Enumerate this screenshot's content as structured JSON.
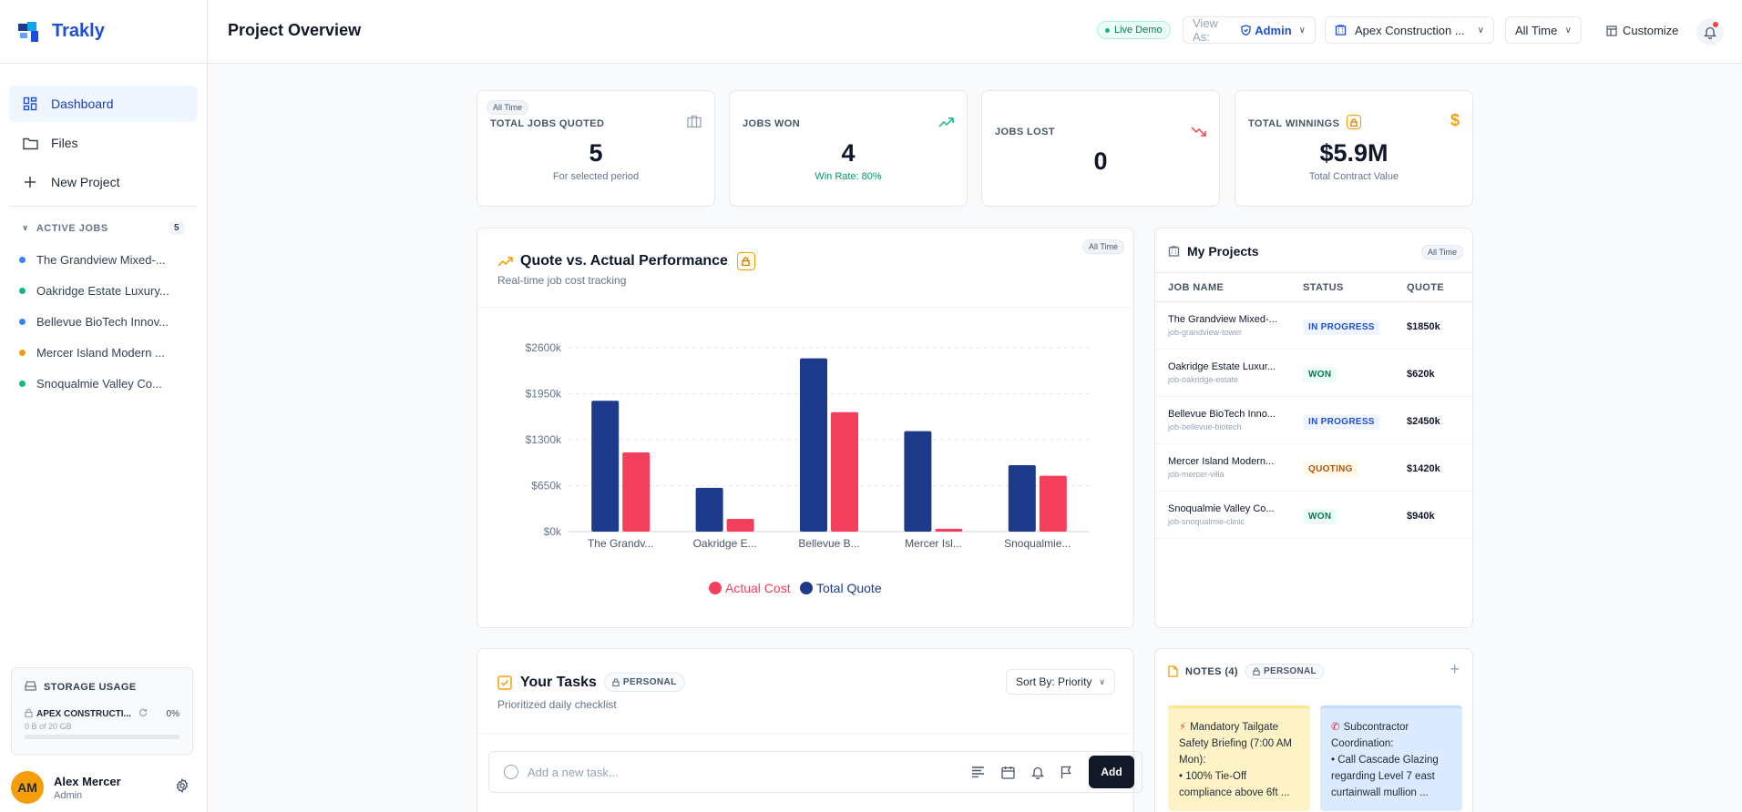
{
  "brand": {
    "name": "Trakly"
  },
  "sidebar": {
    "nav": [
      {
        "label": "Dashboard",
        "icon": "dashboard-icon"
      },
      {
        "label": "Files",
        "icon": "folder-icon"
      },
      {
        "label": "New Project",
        "icon": "plus-icon"
      }
    ],
    "jobs_header": "ACTIVE JOBS",
    "jobs_count": "5",
    "jobs": [
      {
        "label": "The Grandview Mixed-...",
        "color": "#3b82f6"
      },
      {
        "label": "Oakridge Estate Luxury...",
        "color": "#10b981"
      },
      {
        "label": "Bellevue BioTech Innov...",
        "color": "#3b82f6"
      },
      {
        "label": "Mercer Island Modern ...",
        "color": "#f59e0b"
      },
      {
        "label": "Snoqualmie Valley Co...",
        "color": "#10b981"
      }
    ],
    "storage": {
      "title": "STORAGE USAGE",
      "org": "APEX CONSTRUCTI...",
      "percent": "0%",
      "used": "0 B of 20 GB"
    },
    "user": {
      "initials": "AM",
      "name": "Alex Mercer",
      "role": "Admin"
    }
  },
  "header": {
    "title": "Project Overview",
    "live_badge": "Live Demo",
    "view_as_label": "View As:",
    "view_as_value": "Admin",
    "company": "Apex Construction ...",
    "period": "All Time",
    "customize": "Customize"
  },
  "kpis": [
    {
      "label": "TOTAL JOBS QUOTED",
      "value": "5",
      "sub": "For selected period",
      "tag": "All Time"
    },
    {
      "label": "JOBS WON",
      "value": "4",
      "sub": "Win Rate: 80%"
    },
    {
      "label": "JOBS LOST",
      "value": "0"
    },
    {
      "label": "TOTAL WINNINGS",
      "value": "$5.9M",
      "sub": "Total Contract Value"
    }
  ],
  "performance": {
    "title": "Quote vs. Actual Performance",
    "subtitle": "Real-time job cost tracking",
    "tag": "All Time"
  },
  "chart_data": {
    "type": "bar",
    "categories": [
      "The Grandv...",
      "Oakridge E...",
      "Bellevue B...",
      "Mercer Isl...",
      "Snoqualmie..."
    ],
    "series": [
      {
        "name": "Total Quote",
        "color": "#1e3a8a",
        "values": [
          1850,
          620,
          2450,
          1420,
          940
        ]
      },
      {
        "name": "Actual Cost",
        "color": "#f43f5e",
        "values": [
          1120,
          180,
          1690,
          40,
          790
        ]
      }
    ],
    "y_ticks": [
      "$0k",
      "$650k",
      "$1300k",
      "$1950k",
      "$2600k"
    ],
    "ylim": [
      0,
      2600
    ],
    "grid": true,
    "legend_order": [
      "Actual Cost",
      "Total Quote"
    ],
    "legend_position": "bottom"
  },
  "projects": {
    "title": "My Projects",
    "tag": "All Time",
    "columns": [
      "JOB NAME",
      "STATUS",
      "QUOTE"
    ],
    "rows": [
      {
        "name": "The Grandview Mixed-...",
        "slug": "job-grandview-tower",
        "status": "IN PROGRESS",
        "status_type": "progress",
        "quote": "$1850k"
      },
      {
        "name": "Oakridge Estate Luxur...",
        "slug": "job-oakridge-estate",
        "status": "WON",
        "status_type": "won",
        "quote": "$620k"
      },
      {
        "name": "Bellevue BioTech Inno...",
        "slug": "job-bellevue-biotech",
        "status": "IN PROGRESS",
        "status_type": "progress",
        "quote": "$2450k"
      },
      {
        "name": "Mercer Island Modern...",
        "slug": "job-mercer-villa",
        "status": "QUOTING",
        "status_type": "quoting",
        "quote": "$1420k"
      },
      {
        "name": "Snoqualmie Valley Co...",
        "slug": "job-snoqualmie-clinic",
        "status": "WON",
        "status_type": "won",
        "quote": "$940k"
      }
    ]
  },
  "tasks": {
    "title": "Your Tasks",
    "badge": "PERSONAL",
    "subtitle": "Prioritized daily checklist",
    "sort": "Sort By: Priority",
    "placeholder": "Add a new task...",
    "add_label": "Add"
  },
  "notes": {
    "title": "NOTES (4)",
    "badge": "PERSONAL",
    "items": [
      {
        "lines": [
          "Mandatory Tailgate",
          "Safety Briefing (7:00 AM",
          "Mon):",
          "• 100% Tie-Off",
          "compliance above 6ft ..."
        ],
        "color": "#fef3c7",
        "accent": "#fde68a",
        "icon": "lightning-icon"
      },
      {
        "lines": [
          "Subcontractor",
          "Coordination:",
          "• Call Cascade Glazing",
          "regarding Level 7 east",
          "curtainwall mullion ..."
        ],
        "color": "#dbeafe",
        "accent": "#bfdbfe",
        "icon": "phone-icon"
      }
    ]
  }
}
